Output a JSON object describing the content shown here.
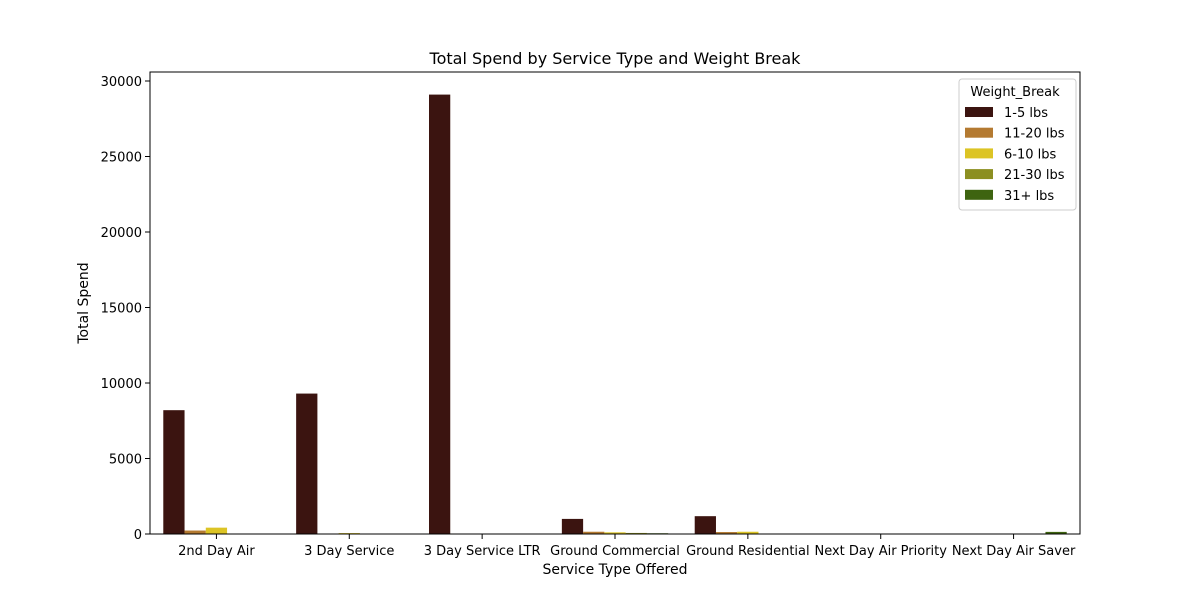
{
  "chart_data": {
    "type": "bar",
    "title": "Total Spend by Service Type and Weight Break",
    "xlabel": "Service Type Offered",
    "ylabel": "Total Spend",
    "ylim": [
      0,
      30000
    ],
    "yticks": [
      0,
      5000,
      10000,
      15000,
      20000,
      25000,
      30000
    ],
    "grid": false,
    "legend_title": "Weight_Break",
    "legend_position": "top-right",
    "categories": [
      "2nd Day Air",
      "3 Day Service",
      "3 Day Service LTR",
      "Ground Commercial",
      "Ground Residential",
      "Next Day Air Priority",
      "Next Day Air Saver"
    ],
    "series": [
      {
        "name": "1-5 lbs",
        "color": "#3b1410",
        "values": [
          8200,
          9300,
          29100,
          1000,
          1180,
          0,
          0
        ]
      },
      {
        "name": "11-20 lbs",
        "color": "#b47a31",
        "values": [
          230,
          0,
          0,
          150,
          130,
          0,
          0
        ]
      },
      {
        "name": "6-10 lbs",
        "color": "#dcc425",
        "values": [
          420,
          60,
          0,
          110,
          150,
          0,
          0
        ]
      },
      {
        "name": "21-30 lbs",
        "color": "#8c8f21",
        "values": [
          0,
          0,
          0,
          70,
          0,
          0,
          0
        ]
      },
      {
        "name": "31+ lbs",
        "color": "#3e6410",
        "values": [
          0,
          0,
          0,
          50,
          0,
          0,
          140
        ]
      }
    ]
  }
}
